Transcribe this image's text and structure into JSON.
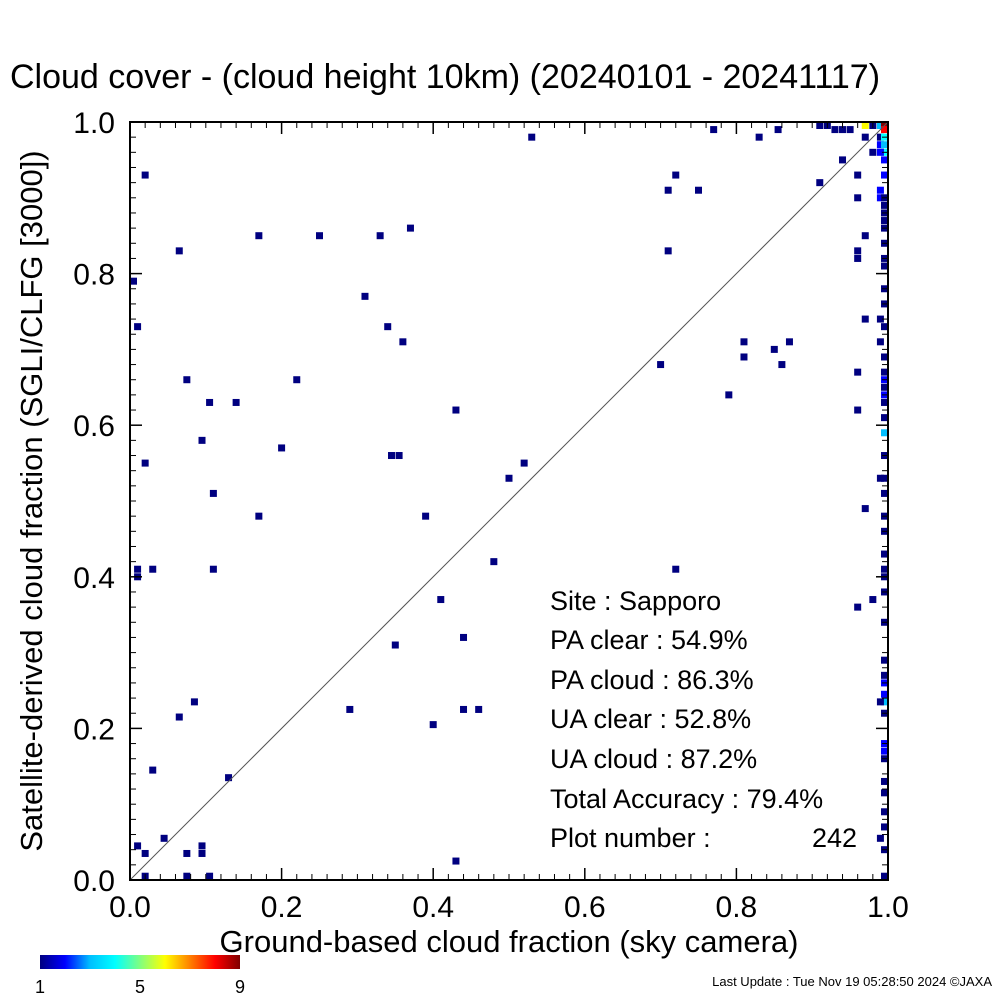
{
  "chart_data": {
    "type": "scatter",
    "title": "Cloud cover - (cloud height 10km)  (20240101 - 20241117)",
    "xlabel": "Ground-based cloud fraction (sky camera)",
    "ylabel": "Satellite-derived cloud fraction (SGLI/CLFG [3000])",
    "xlim": [
      0,
      1
    ],
    "ylim": [
      0,
      1
    ],
    "xticks": [
      "0.0",
      "0.2",
      "0.4",
      "0.6",
      "0.8",
      "1.0"
    ],
    "yticks": [
      "0.0",
      "0.2",
      "0.4",
      "0.6",
      "0.8",
      "1.0"
    ],
    "grid": false,
    "diagonal_line": true,
    "colorbar": {
      "min": 1,
      "max": 9,
      "tick_labels": [
        "1",
        "5",
        "9"
      ],
      "stops": [
        "#000080",
        "#0000ff",
        "#00bfff",
        "#00ffff",
        "#80ff80",
        "#ffff00",
        "#ff8000",
        "#ff0000",
        "#800000"
      ]
    },
    "stats": {
      "site": "Site : Sapporo",
      "pa_clear": "PA clear :  54.9%",
      "pa_cloud": "PA cloud :  86.3%",
      "ua_clear": "UA clear :  52.8%",
      "ua_cloud": "UA cloud :  87.2%",
      "total_accuracy": "Total Accuracy :  79.4%",
      "plot_number_label": "Plot number :",
      "plot_number_value": "242"
    },
    "points": [
      {
        "x": 0.0,
        "y": 0.79,
        "c": 1
      },
      {
        "x": 0.01,
        "y": 0.73,
        "c": 1
      },
      {
        "x": 0.02,
        "y": 0.93,
        "c": 1
      },
      {
        "x": 0.02,
        "y": 0.55,
        "c": 1
      },
      {
        "x": 0.01,
        "y": 0.41,
        "c": 1
      },
      {
        "x": 0.01,
        "y": 0.4,
        "c": 1
      },
      {
        "x": 0.03,
        "y": 0.41,
        "c": 1
      },
      {
        "x": 0.065,
        "y": 0.83,
        "c": 1
      },
      {
        "x": 0.075,
        "y": 0.66,
        "c": 1
      },
      {
        "x": 0.095,
        "y": 0.58,
        "c": 1
      },
      {
        "x": 0.105,
        "y": 0.63,
        "c": 1
      },
      {
        "x": 0.11,
        "y": 0.51,
        "c": 1
      },
      {
        "x": 0.11,
        "y": 0.41,
        "c": 1
      },
      {
        "x": 0.14,
        "y": 0.63,
        "c": 1
      },
      {
        "x": 0.17,
        "y": 0.85,
        "c": 1
      },
      {
        "x": 0.17,
        "y": 0.48,
        "c": 1
      },
      {
        "x": 0.2,
        "y": 0.57,
        "c": 1
      },
      {
        "x": 0.22,
        "y": 0.66,
        "c": 1
      },
      {
        "x": 0.25,
        "y": 0.85,
        "c": 1
      },
      {
        "x": 0.31,
        "y": 0.77,
        "c": 1
      },
      {
        "x": 0.33,
        "y": 0.85,
        "c": 1
      },
      {
        "x": 0.34,
        "y": 0.73,
        "c": 1
      },
      {
        "x": 0.345,
        "y": 0.56,
        "c": 1
      },
      {
        "x": 0.355,
        "y": 0.56,
        "c": 1
      },
      {
        "x": 0.36,
        "y": 0.71,
        "c": 1
      },
      {
        "x": 0.37,
        "y": 0.86,
        "c": 1
      },
      {
        "x": 0.39,
        "y": 0.48,
        "c": 1
      },
      {
        "x": 0.43,
        "y": 0.62,
        "c": 1
      },
      {
        "x": 0.5,
        "y": 0.53,
        "c": 1
      },
      {
        "x": 0.52,
        "y": 0.55,
        "c": 1
      },
      {
        "x": 0.53,
        "y": 0.98,
        "c": 1
      },
      {
        "x": 0.48,
        "y": 0.42,
        "c": 1
      },
      {
        "x": 0.41,
        "y": 0.37,
        "c": 1
      },
      {
        "x": 0.44,
        "y": 0.32,
        "c": 1
      },
      {
        "x": 0.35,
        "y": 0.31,
        "c": 1
      },
      {
        "x": 0.29,
        "y": 0.225,
        "c": 1
      },
      {
        "x": 0.4,
        "y": 0.205,
        "c": 1
      },
      {
        "x": 0.44,
        "y": 0.225,
        "c": 1
      },
      {
        "x": 0.46,
        "y": 0.225,
        "c": 1
      },
      {
        "x": 0.43,
        "y": 0.025,
        "c": 1
      },
      {
        "x": 0.065,
        "y": 0.215,
        "c": 1
      },
      {
        "x": 0.085,
        "y": 0.235,
        "c": 1
      },
      {
        "x": 0.03,
        "y": 0.145,
        "c": 1
      },
      {
        "x": 0.13,
        "y": 0.135,
        "c": 1
      },
      {
        "x": 0.01,
        "y": 0.045,
        "c": 1
      },
      {
        "x": 0.045,
        "y": 0.055,
        "c": 1
      },
      {
        "x": 0.02,
        "y": 0.035,
        "c": 1
      },
      {
        "x": 0.075,
        "y": 0.035,
        "c": 1
      },
      {
        "x": 0.095,
        "y": 0.035,
        "c": 1
      },
      {
        "x": 0.095,
        "y": 0.045,
        "c": 1
      },
      {
        "x": 0.02,
        "y": 0.005,
        "c": 1
      },
      {
        "x": 0.075,
        "y": 0.005,
        "c": 1
      },
      {
        "x": 0.105,
        "y": 0.005,
        "c": 1
      },
      {
        "x": 0.7,
        "y": 0.68,
        "c": 1
      },
      {
        "x": 0.71,
        "y": 0.91,
        "c": 1
      },
      {
        "x": 0.72,
        "y": 0.93,
        "c": 1
      },
      {
        "x": 0.75,
        "y": 0.91,
        "c": 1
      },
      {
        "x": 0.71,
        "y": 0.83,
        "c": 1
      },
      {
        "x": 0.72,
        "y": 0.41,
        "c": 1
      },
      {
        "x": 0.77,
        "y": 0.99,
        "c": 1
      },
      {
        "x": 0.79,
        "y": 0.64,
        "c": 1
      },
      {
        "x": 0.81,
        "y": 0.71,
        "c": 1
      },
      {
        "x": 0.81,
        "y": 0.69,
        "c": 1
      },
      {
        "x": 0.83,
        "y": 0.98,
        "c": 1
      },
      {
        "x": 0.855,
        "y": 0.99,
        "c": 1
      },
      {
        "x": 0.85,
        "y": 0.7,
        "c": 1
      },
      {
        "x": 0.86,
        "y": 0.68,
        "c": 1
      },
      {
        "x": 0.87,
        "y": 0.71,
        "c": 1
      },
      {
        "x": 0.91,
        "y": 0.92,
        "c": 1
      },
      {
        "x": 0.91,
        "y": 1.0,
        "c": 1
      },
      {
        "x": 0.92,
        "y": 1.0,
        "c": 1
      },
      {
        "x": 0.93,
        "y": 0.99,
        "c": 1
      },
      {
        "x": 0.94,
        "y": 0.99,
        "c": 1
      },
      {
        "x": 0.95,
        "y": 0.99,
        "c": 1
      },
      {
        "x": 0.94,
        "y": 0.95,
        "c": 1
      },
      {
        "x": 0.96,
        "y": 0.93,
        "c": 1
      },
      {
        "x": 0.96,
        "y": 0.9,
        "c": 1
      },
      {
        "x": 0.97,
        "y": 0.85,
        "c": 1
      },
      {
        "x": 0.96,
        "y": 0.83,
        "c": 1
      },
      {
        "x": 0.96,
        "y": 0.82,
        "c": 1
      },
      {
        "x": 0.97,
        "y": 0.74,
        "c": 1
      },
      {
        "x": 0.96,
        "y": 0.67,
        "c": 1
      },
      {
        "x": 0.96,
        "y": 0.62,
        "c": 1
      },
      {
        "x": 0.97,
        "y": 0.49,
        "c": 1
      },
      {
        "x": 0.96,
        "y": 0.36,
        "c": 1
      },
      {
        "x": 0.98,
        "y": 0.37,
        "c": 1
      },
      {
        "x": 0.97,
        "y": 0.98,
        "c": 1
      },
      {
        "x": 0.98,
        "y": 0.96,
        "c": 1
      },
      {
        "x": 0.97,
        "y": 1.0,
        "c": 6
      },
      {
        "x": 0.98,
        "y": 1.0,
        "c": 1
      },
      {
        "x": 0.99,
        "y": 1.0,
        "c": 3
      },
      {
        "x": 1.0,
        "y": 1.0,
        "c": 9
      },
      {
        "x": 1.0,
        "y": 0.99,
        "c": 8
      },
      {
        "x": 0.99,
        "y": 0.98,
        "c": 1
      },
      {
        "x": 1.0,
        "y": 0.98,
        "c": 4
      },
      {
        "x": 0.99,
        "y": 0.97,
        "c": 2
      },
      {
        "x": 1.0,
        "y": 0.97,
        "c": 3
      },
      {
        "x": 1.0,
        "y": 0.96,
        "c": 4
      },
      {
        "x": 0.99,
        "y": 0.96,
        "c": 2
      },
      {
        "x": 1.0,
        "y": 0.95,
        "c": 2
      },
      {
        "x": 1.0,
        "y": 0.93,
        "c": 2
      },
      {
        "x": 0.99,
        "y": 0.91,
        "c": 2
      },
      {
        "x": 0.99,
        "y": 0.9,
        "c": 2
      },
      {
        "x": 1.0,
        "y": 0.9,
        "c": 1
      },
      {
        "x": 1.0,
        "y": 0.89,
        "c": 1
      },
      {
        "x": 1.0,
        "y": 0.88,
        "c": 1
      },
      {
        "x": 1.0,
        "y": 0.87,
        "c": 1
      },
      {
        "x": 1.0,
        "y": 0.86,
        "c": 1
      },
      {
        "x": 1.0,
        "y": 0.84,
        "c": 1
      },
      {
        "x": 1.0,
        "y": 0.82,
        "c": 1
      },
      {
        "x": 1.0,
        "y": 0.81,
        "c": 1
      },
      {
        "x": 1.0,
        "y": 0.78,
        "c": 1
      },
      {
        "x": 1.0,
        "y": 0.76,
        "c": 1
      },
      {
        "x": 0.99,
        "y": 0.74,
        "c": 1
      },
      {
        "x": 1.0,
        "y": 0.73,
        "c": 1
      },
      {
        "x": 0.99,
        "y": 0.71,
        "c": 1
      },
      {
        "x": 1.0,
        "y": 0.69,
        "c": 1
      },
      {
        "x": 1.0,
        "y": 0.67,
        "c": 1
      },
      {
        "x": 1.0,
        "y": 0.66,
        "c": 2
      },
      {
        "x": 1.0,
        "y": 0.65,
        "c": 1
      },
      {
        "x": 1.0,
        "y": 0.64,
        "c": 2
      },
      {
        "x": 1.0,
        "y": 0.63,
        "c": 1
      },
      {
        "x": 1.0,
        "y": 0.61,
        "c": 1
      },
      {
        "x": 1.0,
        "y": 0.59,
        "c": 3
      },
      {
        "x": 1.0,
        "y": 0.56,
        "c": 1
      },
      {
        "x": 0.99,
        "y": 0.53,
        "c": 1
      },
      {
        "x": 1.0,
        "y": 0.53,
        "c": 1
      },
      {
        "x": 1.0,
        "y": 0.51,
        "c": 1
      },
      {
        "x": 1.0,
        "y": 0.48,
        "c": 1
      },
      {
        "x": 1.0,
        "y": 0.46,
        "c": 1
      },
      {
        "x": 1.0,
        "y": 0.43,
        "c": 1
      },
      {
        "x": 1.0,
        "y": 0.41,
        "c": 1
      },
      {
        "x": 1.0,
        "y": 0.4,
        "c": 1
      },
      {
        "x": 1.0,
        "y": 0.38,
        "c": 1
      },
      {
        "x": 1.0,
        "y": 0.34,
        "c": 1
      },
      {
        "x": 1.0,
        "y": 0.29,
        "c": 1
      },
      {
        "x": 1.0,
        "y": 0.27,
        "c": 1
      },
      {
        "x": 1.0,
        "y": 0.26,
        "c": 2
      },
      {
        "x": 1.0,
        "y": 0.245,
        "c": 2
      },
      {
        "x": 1.0,
        "y": 0.235,
        "c": 3
      },
      {
        "x": 0.99,
        "y": 0.235,
        "c": 1
      },
      {
        "x": 1.0,
        "y": 0.22,
        "c": 1
      },
      {
        "x": 1.0,
        "y": 0.18,
        "c": 2
      },
      {
        "x": 1.0,
        "y": 0.17,
        "c": 2
      },
      {
        "x": 1.0,
        "y": 0.16,
        "c": 1
      },
      {
        "x": 1.0,
        "y": 0.13,
        "c": 1
      },
      {
        "x": 1.0,
        "y": 0.115,
        "c": 1
      },
      {
        "x": 1.0,
        "y": 0.09,
        "c": 1
      },
      {
        "x": 1.0,
        "y": 0.07,
        "c": 1
      },
      {
        "x": 0.99,
        "y": 0.055,
        "c": 1
      },
      {
        "x": 1.0,
        "y": 0.04,
        "c": 1
      },
      {
        "x": 1.0,
        "y": 0.005,
        "c": 1
      }
    ]
  },
  "footer": {
    "last_update": "Last Update : Tue Nov 19 05:28:50 2024  ©JAXA"
  }
}
